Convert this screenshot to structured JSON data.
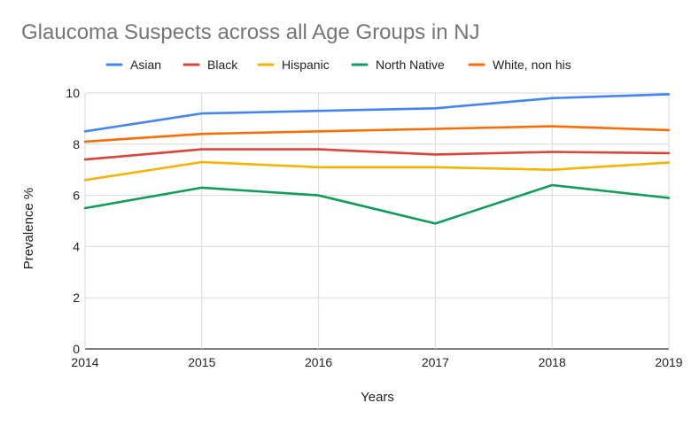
{
  "chart_data": {
    "type": "line",
    "title": "Glaucoma Suspects across all Age Groups in NJ",
    "xlabel": "Years",
    "ylabel": "Prevalence %",
    "x": [
      "2014",
      "2015",
      "2016",
      "2017",
      "2018",
      "2019"
    ],
    "ylim": [
      0,
      10
    ],
    "yticks": [
      "0",
      "2",
      "4",
      "6",
      "8",
      "10"
    ],
    "grid": true,
    "legend_position": "top",
    "series": [
      {
        "name": "Asian",
        "color": "#4285f4",
        "values": [
          8.5,
          9.2,
          9.3,
          9.4,
          9.8,
          9.95
        ]
      },
      {
        "name": "Black",
        "color": "#db4437",
        "values": [
          7.4,
          7.8,
          7.8,
          7.6,
          7.7,
          7.65
        ]
      },
      {
        "name": "Hispanic",
        "color": "#f4b400",
        "values": [
          6.6,
          7.3,
          7.1,
          7.1,
          7.0,
          7.28
        ]
      },
      {
        "name": "North Native",
        "color": "#0f9d58",
        "values": [
          5.5,
          6.3,
          6.0,
          4.9,
          6.4,
          5.9
        ]
      },
      {
        "name": "White, non his",
        "color": "#ff6d01",
        "values": [
          8.1,
          8.4,
          8.5,
          8.6,
          8.7,
          8.55
        ]
      }
    ]
  }
}
